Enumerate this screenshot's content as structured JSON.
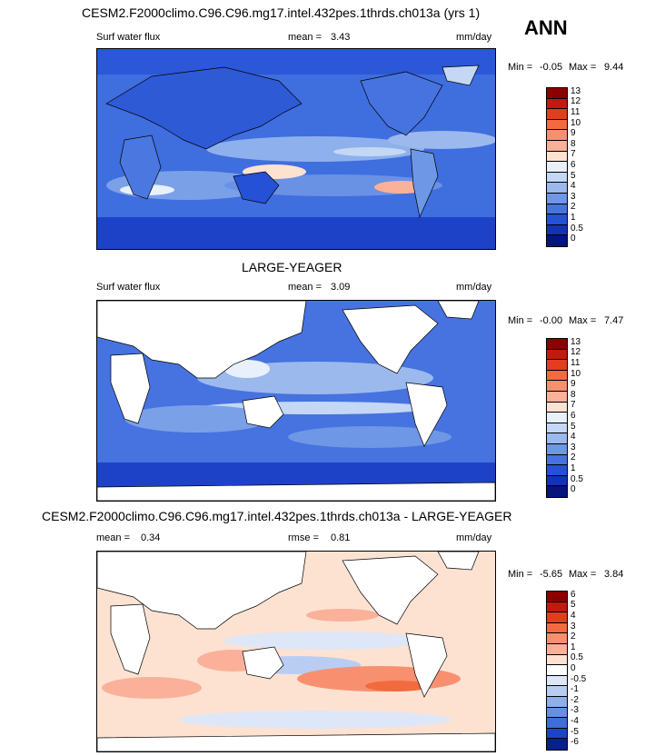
{
  "season": "ANN",
  "panels": [
    {
      "title": "CESM2.F2000climo.C96.C96.mg17.intel.432pes.1thrds.ch013a (yrs 1)",
      "variable": "Surf water flux",
      "stat_label": "mean =",
      "stat_value": "3.43",
      "units": "mm/day",
      "min_label": "Min =",
      "min_value": "-0.05",
      "max_label": "Max =",
      "max_value": "9.44",
      "levels": [
        "13",
        "12",
        "11",
        "10",
        "9",
        "8",
        "7",
        "6",
        "5",
        "4",
        "3",
        "2",
        "1",
        "0.5",
        "0"
      ],
      "colors": [
        "#8b0000",
        "#c21a0c",
        "#e33d1e",
        "#f36a3f",
        "#f89070",
        "#fbb09a",
        "#fde2d2",
        "#e8f0fb",
        "#c4d7f5",
        "#9cb9ee",
        "#6e97e6",
        "#4673df",
        "#2551d6",
        "#1432b8",
        "#06147e"
      ]
    },
    {
      "title": "LARGE-YEAGER",
      "variable": "Surf water flux",
      "stat_label": "mean =",
      "stat_value": "3.09",
      "units": "mm/day",
      "min_label": "Min =",
      "min_value": "-0.00",
      "max_label": "Max =",
      "max_value": "7.47",
      "levels": [
        "13",
        "12",
        "11",
        "10",
        "9",
        "8",
        "7",
        "6",
        "5",
        "4",
        "3",
        "2",
        "1",
        "0.5",
        "0"
      ],
      "colors": [
        "#8b0000",
        "#c21a0c",
        "#e33d1e",
        "#f36a3f",
        "#f89070",
        "#fbb09a",
        "#fde2d2",
        "#e8f0fb",
        "#c4d7f5",
        "#9cb9ee",
        "#6e97e6",
        "#4673df",
        "#2551d6",
        "#1432b8",
        "#06147e"
      ]
    },
    {
      "title": "CESM2.F2000climo.C96.C96.mg17.intel.432pes.1thrds.ch013a - LARGE-YEAGER",
      "variable": "",
      "stat_label": "mean =",
      "stat_value": "0.34",
      "rmse_label": "rmse =",
      "rmse_value": "0.81",
      "units": "mm/day",
      "min_label": "Min =",
      "min_value": "-5.65",
      "max_label": "Max =",
      "max_value": "3.84",
      "levels": [
        "6",
        "5",
        "4",
        "3",
        "2",
        "1",
        "0.5",
        "0",
        "-0.5",
        "-1",
        "-2",
        "-3",
        "-4",
        "-5",
        "-6"
      ],
      "colors": [
        "#8b0000",
        "#c21a0c",
        "#e33d1e",
        "#f36a3f",
        "#f89070",
        "#fbb09a",
        "#fde2d2",
        "#ffffff",
        "#dde7f8",
        "#b9cdf2",
        "#8faeea",
        "#6690e2",
        "#3e6ed9",
        "#1a46c4",
        "#0a1f8f"
      ]
    }
  ]
}
